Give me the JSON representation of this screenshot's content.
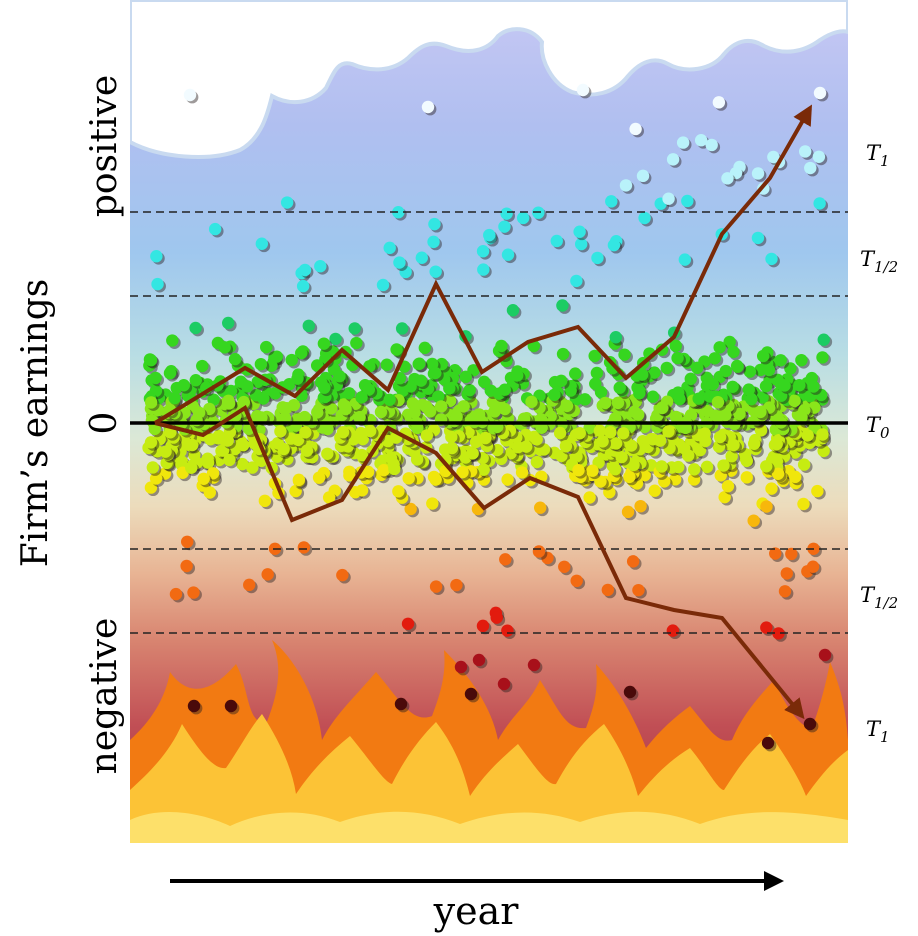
{
  "y_axis": {
    "title": "Firm’s earnings",
    "positive_label": "positive",
    "zero_label": "0",
    "negative_label": "negative"
  },
  "x_axis": {
    "title": "year"
  },
  "thresholds": [
    {
      "id": "top-t1",
      "base": "T",
      "sub": "1"
    },
    {
      "id": "top-thalf",
      "base": "T",
      "sub": "1/2"
    },
    {
      "id": "zero-t0",
      "base": "T",
      "sub": "0"
    },
    {
      "id": "bottom-thalf",
      "base": "T",
      "sub": "1/2"
    },
    {
      "id": "bottom-t1",
      "base": "T",
      "sub": "1"
    }
  ],
  "colors": {
    "sky_top": "#b6c2f2",
    "sky_mid": "#9ec6ee",
    "neutral_band": "#d9e8d8",
    "warm_band": "#e8b590",
    "hot_band": "#b9454f",
    "path_color": "#7a2a08",
    "cloud_fill": "#ffffff",
    "cloud_edge": "#c9daf0",
    "flame_outer": "#f27a12",
    "flame_inner": "#fcc336"
  },
  "icons": [
    "cloud-icon",
    "fire-icon",
    "arrow-right-icon"
  ]
}
